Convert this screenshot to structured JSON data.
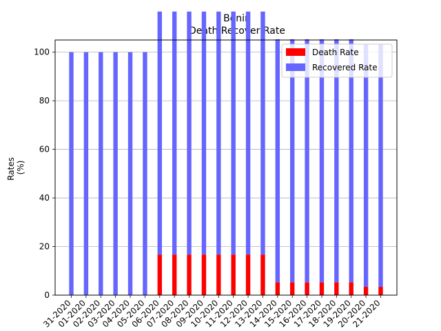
{
  "chart_data": {
    "type": "bar",
    "title": "Benin",
    "subtitle": "Death Recover Rate",
    "xlabel": "",
    "ylabel": [
      "Rates",
      "(%)"
    ],
    "ylim": [
      0,
      105
    ],
    "yticks": [
      0,
      20,
      40,
      60,
      80,
      100
    ],
    "grid": "y",
    "legend_position": "top-right",
    "categories": [
      "03-31-2020",
      "04-01-2020",
      "04-02-2020",
      "04-03-2020",
      "04-04-2020",
      "04-05-2020",
      "04-06-2020",
      "04-07-2020",
      "04-08-2020",
      "04-09-2020",
      "04-10-2020",
      "04-11-2020",
      "04-12-2020",
      "04-13-2020",
      "04-14-2020",
      "04-15-2020",
      "04-16-2020",
      "04-17-2020",
      "04-18-2020",
      "04-19-2020",
      "04-20-2020",
      "04-21-2020"
    ],
    "tick_labels": [
      "31-2020",
      "01-2020",
      "02-2020",
      "03-2020",
      "04-2020",
      "05-2020",
      "06-2020",
      "07-2020",
      "08-2020",
      "09-2020",
      "10-2020",
      "11-2020",
      "12-2020",
      "13-2020",
      "14-2020",
      "15-2020",
      "16-2020",
      "17-2020",
      "18-2020",
      "19-2020",
      "20-2020",
      "21-2020"
    ],
    "series": [
      {
        "name": "Death Rate",
        "color": "#ff0000",
        "values": [
          0,
          0,
          0,
          0,
          0,
          0,
          16.7,
          16.7,
          16.7,
          16.7,
          16.7,
          16.7,
          16.7,
          16.7,
          5.3,
          5.3,
          5.3,
          5.3,
          5.3,
          5.3,
          3.4,
          3.4
        ]
      },
      {
        "name": "Recovered Rate",
        "color": "#6666ff",
        "values": [
          100,
          100,
          100,
          100,
          100,
          100,
          100,
          100,
          100,
          100,
          100,
          100,
          100,
          100,
          100,
          100,
          100,
          100,
          100,
          100,
          100,
          100
        ]
      }
    ]
  }
}
